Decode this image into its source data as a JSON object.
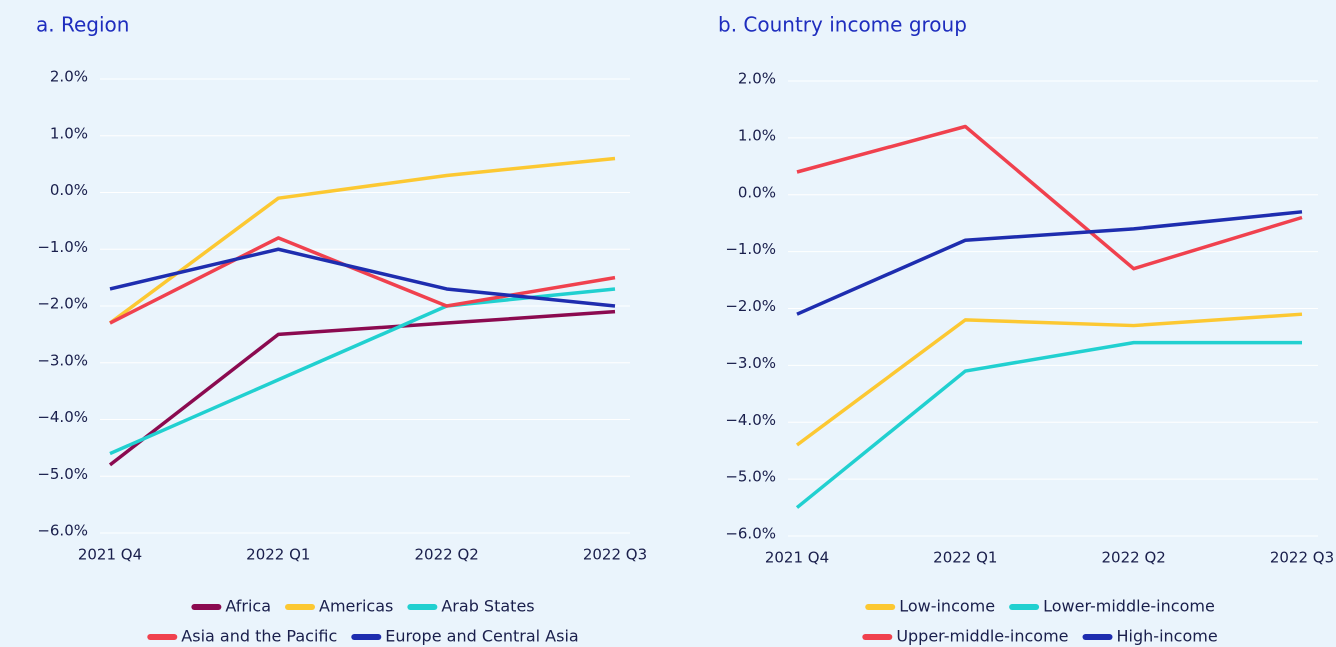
{
  "chart_data": [
    {
      "type": "line",
      "title": "a. Region",
      "categories": [
        "2021 Q4",
        "2022 Q1",
        "2022 Q2",
        "2022 Q3"
      ],
      "series": [
        {
          "name": "Africa",
          "color": "#8b0a50",
          "values": [
            -4.8,
            -2.5,
            -2.3,
            -2.1
          ]
        },
        {
          "name": "Americas",
          "color": "#fcc832",
          "values": [
            -2.3,
            -0.1,
            0.3,
            0.6
          ]
        },
        {
          "name": "Arab States",
          "color": "#21d0d0",
          "values": [
            -4.6,
            -3.3,
            -2.0,
            -1.7
          ]
        },
        {
          "name": "Asia and the Pacific",
          "color": "#f0414e",
          "values": [
            -2.3,
            -0.8,
            -2.0,
            -1.5
          ]
        },
        {
          "name": "Europe and Central Asia",
          "color": "#1e2daf",
          "values": [
            -1.7,
            -1.0,
            -1.7,
            -2.0
          ]
        }
      ],
      "ylim": [
        -6,
        2
      ],
      "yticks": [
        {
          "value": -6,
          "label": "−6.0%"
        },
        {
          "value": -5,
          "label": "−5.0%"
        },
        {
          "value": -4,
          "label": "−4.0%"
        },
        {
          "value": -3,
          "label": "−3.0%"
        },
        {
          "value": -2,
          "label": "−2.0%"
        },
        {
          "value": -1,
          "label": "−1.0%"
        },
        {
          "value": 0,
          "label": "0.0%"
        },
        {
          "value": 1,
          "label": "1.0%"
        },
        {
          "value": 2,
          "label": "2.0%"
        }
      ],
      "grid": true,
      "legend": "bottom"
    },
    {
      "type": "line",
      "title": "b. Country income group",
      "categories": [
        "2021 Q4",
        "2022 Q1",
        "2022 Q2",
        "2022 Q3"
      ],
      "series": [
        {
          "name": "Low-income",
          "color": "#fcc832",
          "values": [
            -4.4,
            -2.2,
            -2.3,
            -2.1
          ]
        },
        {
          "name": "Lower-middle-income",
          "color": "#21d0d0",
          "values": [
            -5.5,
            -3.1,
            -2.6,
            -2.6
          ]
        },
        {
          "name": "Upper-middle-income",
          "color": "#f0414e",
          "values": [
            0.4,
            1.2,
            -1.3,
            -0.4
          ]
        },
        {
          "name": "High-income",
          "color": "#1e2daf",
          "values": [
            -2.1,
            -0.8,
            -0.6,
            -0.3
          ]
        }
      ],
      "ylim": [
        -6,
        2
      ],
      "yticks": [
        {
          "value": -6,
          "label": "−6.0%"
        },
        {
          "value": -5,
          "label": "−5.0%"
        },
        {
          "value": -4,
          "label": "−4.0%"
        },
        {
          "value": -3,
          "label": "−3.0%"
        },
        {
          "value": -2,
          "label": "−2.0%"
        },
        {
          "value": -1,
          "label": "−1.0%"
        },
        {
          "value": 0,
          "label": "0.0%"
        },
        {
          "value": 1,
          "label": "1.0%"
        },
        {
          "value": 2,
          "label": "2.0%"
        }
      ],
      "grid": true,
      "legend": "bottom"
    }
  ]
}
